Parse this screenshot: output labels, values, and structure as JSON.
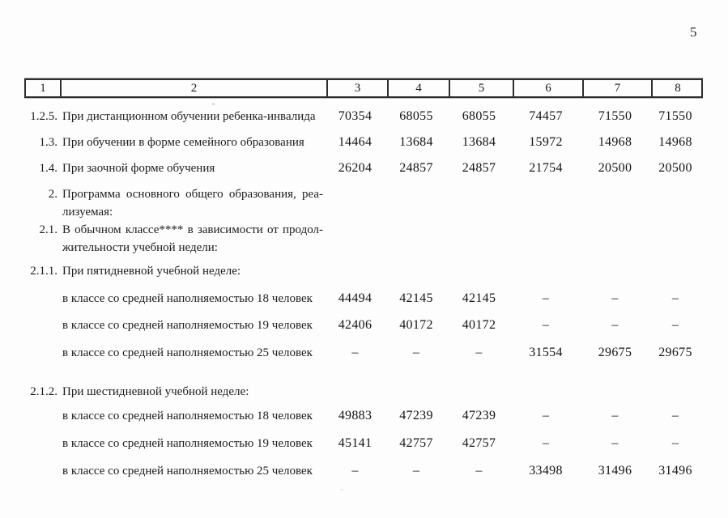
{
  "page": {
    "number": "5"
  },
  "table": {
    "header": [
      "1",
      "2",
      "3",
      "4",
      "5",
      "6",
      "7",
      "8"
    ],
    "rows": [
      {
        "num": "1.2.5.",
        "lines": [
          "При дистанционном обучении ребенка-инвалида"
        ],
        "values": [
          "70354",
          "68055",
          "68055",
          "74457",
          "71550",
          "71550"
        ]
      },
      {
        "num": "1.3.",
        "lines": [
          "При обучении в форме семейного образования"
        ],
        "values": [
          "14464",
          "13684",
          "13684",
          "15972",
          "14968",
          "14968"
        ]
      },
      {
        "num": "1.4.",
        "lines": [
          "При заочной форме обучения"
        ],
        "values": [
          "26204",
          "24857",
          "24857",
          "21754",
          "20500",
          "20500"
        ]
      },
      {
        "num": "2.",
        "lines": [
          "Программа основного общего образования, реа-",
          "лизуемая:"
        ],
        "values": [
          "",
          "",
          "",
          "",
          "",
          ""
        ]
      },
      {
        "num": "2.1.",
        "lines": [
          "В обычном классе**** в зависимости от продол-",
          "жительности учебной недели:"
        ],
        "values": [
          "",
          "",
          "",
          "",
          "",
          ""
        ]
      },
      {
        "num": "2.1.1.",
        "lines": [
          "При пятидневной учебной неделе:"
        ],
        "values": [
          "",
          "",
          "",
          "",
          "",
          ""
        ]
      },
      {
        "num": "",
        "lines": [
          "в классе со средней наполняемостью 18 человек"
        ],
        "values": [
          "44494",
          "42145",
          "42145",
          "–",
          "–",
          "–"
        ]
      },
      {
        "num": "",
        "lines": [
          "в классе со средней наполняемостью 19 человек"
        ],
        "values": [
          "42406",
          "40172",
          "40172",
          "–",
          "–",
          "–"
        ]
      },
      {
        "num": "",
        "lines": [
          "в классе со средней наполняемостью 25 человек"
        ],
        "values": [
          "–",
          "–",
          "–",
          "31554",
          "29675",
          "29675"
        ]
      },
      {
        "num": "2.1.2.",
        "lines": [
          "При шестидневной учебной неделе:"
        ],
        "values": [
          "",
          "",
          "",
          "",
          "",
          ""
        ]
      },
      {
        "num": "",
        "lines": [
          "в классе со средней наполняемостью 18 человек"
        ],
        "values": [
          "49883",
          "47239",
          "47239",
          "–",
          "–",
          "–"
        ]
      },
      {
        "num": "",
        "lines": [
          "в классе со средней наполняемостью 19 человек"
        ],
        "values": [
          "45141",
          "42757",
          "42757",
          "–",
          "–",
          "–"
        ]
      },
      {
        "num": "",
        "lines": [
          "в классе со средней наполняемостью 25 человек"
        ],
        "values": [
          "–",
          "–",
          "–",
          "33498",
          "31496",
          "31496"
        ]
      }
    ]
  }
}
